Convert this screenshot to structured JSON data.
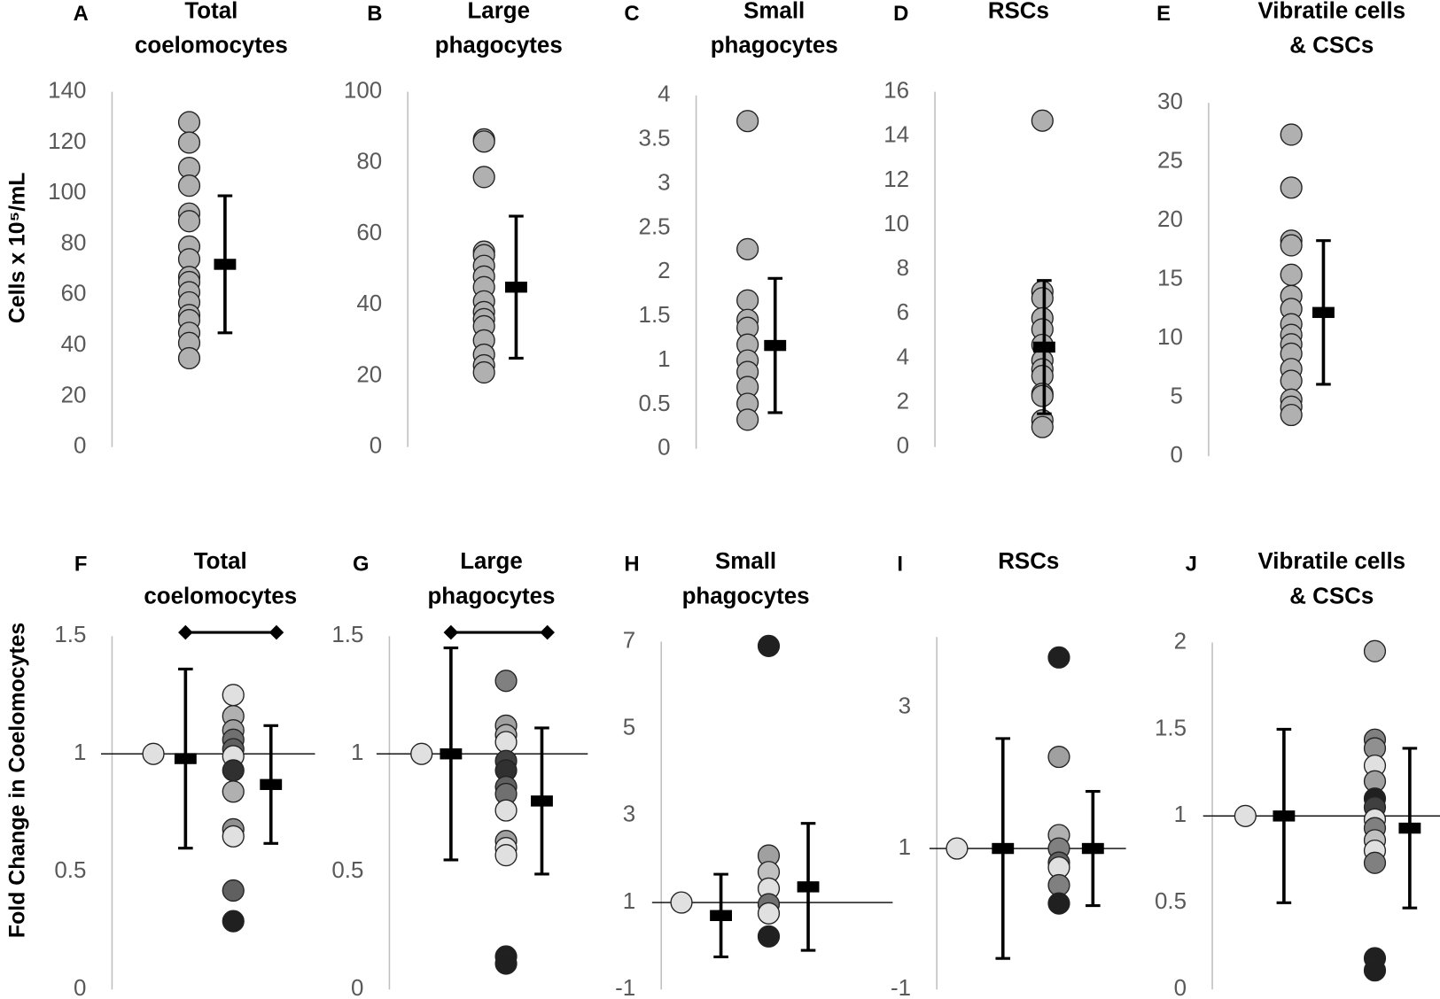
{
  "y_label_top": "Cells x 10⁵/mL",
  "y_label_bottom": "Fold Change in Coelomocytes",
  "chart_data": [
    {
      "type": "strip",
      "panel": "A",
      "title": [
        "Total",
        "coelomocytes"
      ],
      "ylim": [
        0,
        140
      ],
      "yticks": [
        0,
        20,
        40,
        60,
        80,
        100,
        120,
        140
      ],
      "values": [
        128,
        120,
        110,
        103,
        92,
        89,
        79,
        74,
        67,
        65,
        61,
        57,
        52,
        50,
        45,
        41,
        35
      ],
      "color": "#b0b0b0",
      "mean": 72,
      "error": 27
    },
    {
      "type": "strip",
      "panel": "B",
      "title": [
        "Large",
        "phagocytes"
      ],
      "ylim": [
        0,
        100
      ],
      "yticks": [
        0,
        20,
        40,
        60,
        80,
        100
      ],
      "values": [
        86.6,
        86,
        76,
        55,
        54,
        51,
        48,
        45,
        41,
        38,
        36,
        34,
        30,
        26,
        23,
        21
      ],
      "color": "#b0b0b0",
      "mean": 45,
      "error": 20
    },
    {
      "type": "strip",
      "panel": "C",
      "title": [
        "Small",
        "phagocytes"
      ],
      "ylim": [
        0,
        4
      ],
      "yticks": [
        0,
        0.5,
        1,
        1.5,
        2,
        2.5,
        3,
        3.5,
        4
      ],
      "values": [
        3.71,
        2.26,
        1.68,
        1.46,
        1.37,
        1.18,
        1.0,
        0.87,
        0.7,
        0.51,
        0.33
      ],
      "color": "#b0b0b0",
      "mean": 1.17,
      "error": 0.76
    },
    {
      "type": "strip",
      "panel": "D",
      "title": [
        "RSCs"
      ],
      "ylim": [
        0,
        16
      ],
      "yticks": [
        0,
        2,
        4,
        6,
        8,
        10,
        12,
        14,
        16
      ],
      "values": [
        14.7,
        7.0,
        6.7,
        5.8,
        5.3,
        4.6,
        3.9,
        3.5,
        3.2,
        2.4,
        2.3,
        1.2,
        0.9
      ],
      "color": "#b0b0b0",
      "mean": 4.5,
      "error": 3
    },
    {
      "type": "strip",
      "panel": "E",
      "title": [
        "Vibratile cells",
        "& CSCs"
      ],
      "ylim": [
        0,
        30
      ],
      "yticks": [
        0,
        5,
        10,
        15,
        20,
        25,
        30
      ],
      "values": [
        27.3,
        22.8,
        18.3,
        17.9,
        15.4,
        13.6,
        12.5,
        11.2,
        10.3,
        9.5,
        8.7,
        7.4,
        6.4,
        4.8,
        4.2,
        3.5
      ],
      "color": "#b0b0b0",
      "mean": 12.2,
      "error": 6.1
    },
    {
      "type": "fold",
      "panel": "F",
      "title": [
        "Total",
        "coelomocytes"
      ],
      "ylim": [
        0,
        1.5
      ],
      "yticks": [
        0,
        0.5,
        1,
        1.5
      ],
      "reference": 1,
      "bracket": true,
      "control": {
        "values": [
          1
        ],
        "colors": [
          "#e0e0e0"
        ],
        "mean": 0.98,
        "error": 0.38
      },
      "treated": {
        "values": [
          1.25,
          1.16,
          1.1,
          1.06,
          1.02,
          0.99,
          0.93,
          0.84,
          0.68,
          0.65,
          0.42,
          0.29
        ],
        "colors": [
          "#e0e0e0",
          "#b0b0b0",
          "#a0a0a0",
          "#707070",
          "#606060",
          "#e0e0e0",
          "#303030",
          "#b0b0b0",
          "#909090",
          "#e0e0e0",
          "#606060",
          "#202020"
        ],
        "mean": 0.87,
        "error": 0.25
      }
    },
    {
      "type": "fold",
      "panel": "G",
      "title": [
        "Large",
        "phagocytes"
      ],
      "ylim": [
        0,
        1.5
      ],
      "yticks": [
        0,
        0.5,
        1,
        1.5
      ],
      "reference": 1,
      "bracket": true,
      "control": {
        "values": [
          1
        ],
        "colors": [
          "#e0e0e0"
        ],
        "mean": 1.0,
        "error": 0.45
      },
      "treated": {
        "values": [
          1.31,
          1.12,
          1.08,
          1.05,
          0.97,
          0.93,
          0.86,
          0.83,
          0.76,
          0.63,
          0.6,
          0.57,
          0.14,
          0.11
        ],
        "colors": [
          "#808080",
          "#a0a0a0",
          "#b0b0b0",
          "#e0e0e0",
          "#404040",
          "#303030",
          "#606060",
          "#707070",
          "#e0e0e0",
          "#a0a0a0",
          "#e0e0e0",
          "#e0e0e0",
          "#202020",
          "#202020"
        ],
        "mean": 0.8,
        "error": 0.31
      }
    },
    {
      "type": "fold",
      "panel": "H",
      "title": [
        "Small",
        "phagocytes"
      ],
      "ylim": [
        -1,
        7
      ],
      "yticks": [
        -1,
        1,
        3,
        5,
        7
      ],
      "reference": 1,
      "bracket": false,
      "control": {
        "values": [
          1
        ],
        "colors": [
          "#e0e0e0"
        ],
        "mean": 0.7,
        "error": 0.95
      },
      "treated": {
        "values": [
          6.9,
          2.08,
          1.7,
          1.32,
          0.96,
          0.75,
          0.22
        ],
        "colors": [
          "#202020",
          "#a0a0a0",
          "#c0c0c0",
          "#e0e0e0",
          "#707070",
          "#e0e0e0",
          "#202020"
        ],
        "mean": 1.36,
        "error": 1.46
      }
    },
    {
      "type": "fold",
      "panel": "I",
      "title": [
        "RSCs"
      ],
      "ylim": [
        -1,
        4
      ],
      "yticks": [
        -1,
        1,
        3
      ],
      "reference": 1,
      "bracket": false,
      "control": {
        "values": [
          1
        ],
        "colors": [
          "#e0e0e0"
        ],
        "mean": 1.0,
        "error": 1.56
      },
      "treated": {
        "values": [
          3.71,
          2.3,
          1.19,
          1.0,
          0.8,
          0.73,
          0.48,
          0.22
        ],
        "colors": [
          "#202020",
          "#a0a0a0",
          "#b0b0b0",
          "#808080",
          "#606060",
          "#e0e0e0",
          "#808080",
          "#202020"
        ],
        "mean": 1.0,
        "error": 0.81
      }
    },
    {
      "type": "fold",
      "panel": "J",
      "title": [
        "Vibratile cells",
        "& CSCs"
      ],
      "ylim": [
        0,
        2
      ],
      "yticks": [
        0,
        0.5,
        1,
        1.5,
        2
      ],
      "reference": 1,
      "bracket": false,
      "control": {
        "values": [
          1
        ],
        "colors": [
          "#e0e0e0"
        ],
        "mean": 1.0,
        "error": 0.5
      },
      "treated": {
        "values": [
          1.95,
          1.44,
          1.39,
          1.29,
          1.2,
          1.1,
          1.05,
          0.98,
          0.93,
          0.86,
          0.8,
          0.73,
          0.18,
          0.11
        ],
        "colors": [
          "#b0b0b0",
          "#808080",
          "#909090",
          "#e0e0e0",
          "#a0a0a0",
          "#202020",
          "#404040",
          "#e0e0e0",
          "#808080",
          "#c0c0c0",
          "#e0e0e0",
          "#808080",
          "#202020",
          "#202020"
        ],
        "mean": 0.93,
        "error": 0.46
      }
    }
  ]
}
